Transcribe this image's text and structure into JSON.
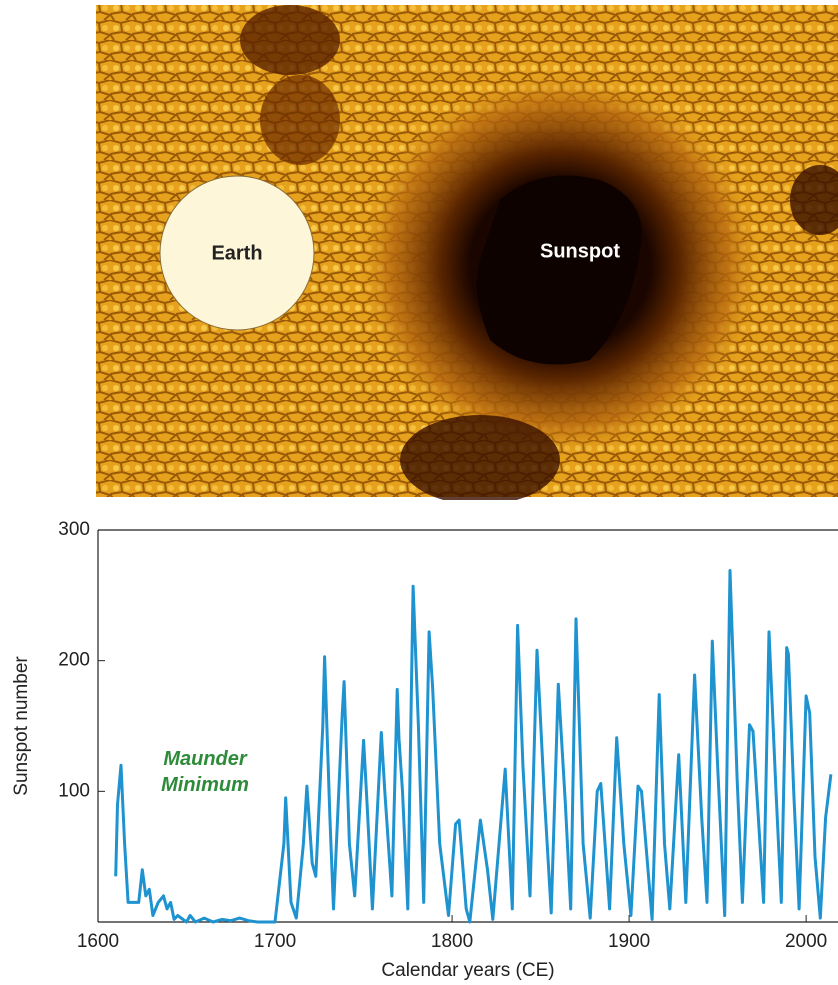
{
  "image": {
    "earth_label": "Earth",
    "sunspot_label": "Sunspot"
  },
  "chart_data": {
    "type": "line",
    "x_label": "Calendar years (CE)",
    "y_label": "Sunspot number",
    "annotation": "Maunder Minimum",
    "xlim": [
      1600,
      2018
    ],
    "ylim": [
      0,
      300
    ],
    "xticks": [
      1600,
      1700,
      1800,
      1900,
      2000
    ],
    "yticks": [
      100,
      200,
      300
    ],
    "x": [
      1610,
      1611,
      1613,
      1615,
      1617,
      1620,
      1623,
      1625,
      1627,
      1629,
      1631,
      1634,
      1637,
      1639,
      1641,
      1643,
      1645,
      1650,
      1652,
      1655,
      1660,
      1665,
      1670,
      1675,
      1680,
      1685,
      1690,
      1700,
      1705,
      1706,
      1709,
      1712,
      1716,
      1718,
      1721,
      1723,
      1727,
      1728,
      1731,
      1733,
      1738,
      1739,
      1742,
      1745,
      1750,
      1752,
      1755,
      1760,
      1762,
      1766,
      1769,
      1770,
      1772,
      1775,
      1778,
      1781,
      1784,
      1787,
      1789,
      1793,
      1798,
      1802,
      1804,
      1808,
      1810,
      1816,
      1820,
      1823,
      1830,
      1834,
      1837,
      1840,
      1844,
      1848,
      1852,
      1856,
      1860,
      1864,
      1867,
      1870,
      1874,
      1878,
      1882,
      1884,
      1889,
      1893,
      1897,
      1901,
      1905,
      1907,
      1913,
      1917,
      1920,
      1923,
      1928,
      1932,
      1937,
      1941,
      1944,
      1947,
      1950,
      1954,
      1957,
      1961,
      1964,
      1968,
      1970,
      1976,
      1979,
      1983,
      1986,
      1989,
      1990,
      1993,
      1996,
      2000,
      2002,
      2005,
      2008,
      2011,
      2014
    ],
    "series": [
      {
        "name": "Sunspot number",
        "color": "#1e93d0",
        "values": [
          35,
          90,
          120,
          60,
          15,
          15,
          15,
          40,
          20,
          25,
          5,
          15,
          20,
          10,
          15,
          2,
          5,
          0,
          5,
          0,
          3,
          0,
          2,
          1,
          3,
          1,
          0,
          0,
          60,
          95,
          15,
          3,
          60,
          104,
          45,
          35,
          150,
          203,
          80,
          10,
          160,
          184,
          60,
          20,
          139,
          90,
          10,
          145,
          100,
          20,
          178,
          140,
          100,
          10,
          257,
          150,
          15,
          222,
          180,
          60,
          5,
          75,
          78,
          10,
          0,
          78,
          40,
          2,
          117,
          10,
          227,
          120,
          20,
          208,
          100,
          7,
          182,
          90,
          10,
          232,
          60,
          3,
          100,
          106,
          10,
          141,
          60,
          5,
          104,
          100,
          2,
          174,
          60,
          10,
          128,
          15,
          189,
          80,
          15,
          215,
          120,
          5,
          269,
          110,
          15,
          151,
          146,
          15,
          222,
          100,
          15,
          210,
          205,
          100,
          10,
          173,
          160,
          50,
          3,
          80,
          113
        ]
      }
    ]
  }
}
